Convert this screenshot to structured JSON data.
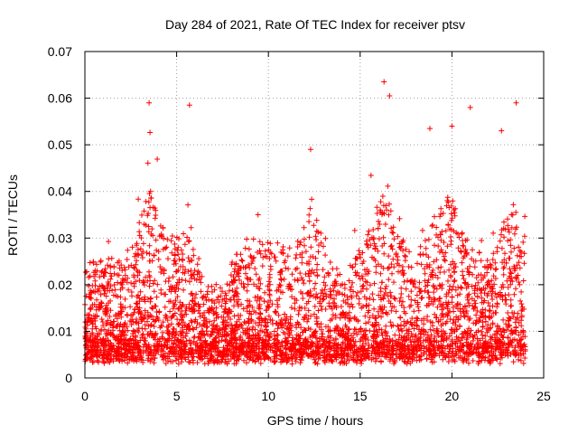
{
  "chart_data": {
    "type": "scatter",
    "title": "Day 284 of 2021, Rate Of TEC Index for receiver ptsv",
    "xlabel": "GPS time / hours",
    "ylabel": "ROTI / TECUs",
    "xlim": [
      0,
      25
    ],
    "ylim": [
      0,
      0.07
    ],
    "x_ticks": [
      "0",
      "5",
      "10",
      "15",
      "20",
      "25"
    ],
    "y_ticks": [
      "0",
      "0.01",
      "0.02",
      "0.03",
      "0.04",
      "0.05",
      "0.06",
      "0.07"
    ],
    "grid": true,
    "marker": "+",
    "series_color": "#ff0000",
    "x_range_of_data": [
      0,
      24
    ],
    "y_range_of_data": [
      0.002,
      0.064
    ],
    "notable_points": [
      {
        "x": 3.5,
        "y": 0.059
      },
      {
        "x": 5.7,
        "y": 0.0585
      },
      {
        "x": 16.3,
        "y": 0.0635
      },
      {
        "x": 16.6,
        "y": 0.0605
      },
      {
        "x": 21.0,
        "y": 0.058
      },
      {
        "x": 23.5,
        "y": 0.059
      },
      {
        "x": 12.3,
        "y": 0.049
      },
      {
        "x": 20.0,
        "y": 0.054
      },
      {
        "x": 18.8,
        "y": 0.0535
      },
      {
        "x": 22.7,
        "y": 0.053
      }
    ]
  }
}
